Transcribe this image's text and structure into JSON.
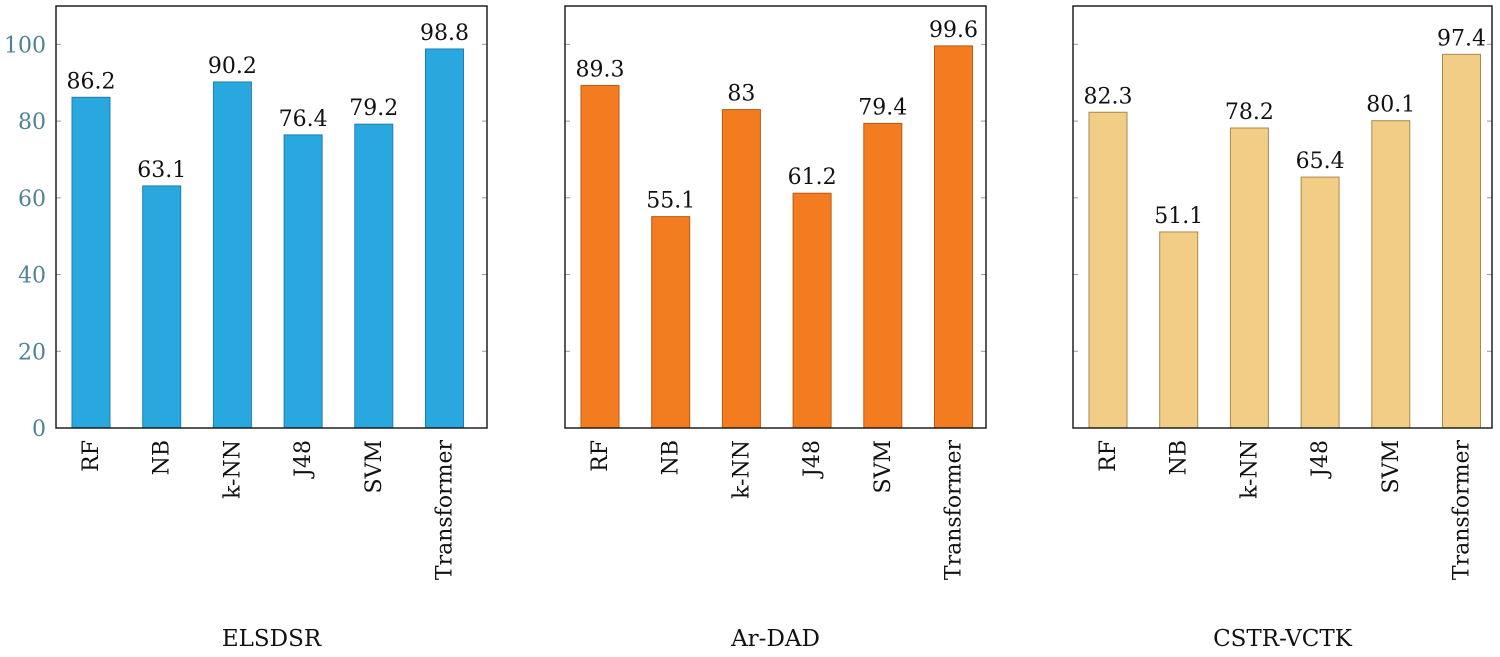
{
  "chart_data": [
    {
      "type": "bar",
      "title": "ELSDSR",
      "categories": [
        "RF",
        "NB",
        "k-NN",
        "J48",
        "SVM",
        "Transformer"
      ],
      "values": [
        86.2,
        63.1,
        90.2,
        76.4,
        79.2,
        98.8
      ],
      "data_labels": [
        "86.2",
        "63.1",
        "90.2",
        "76.4",
        "79.2",
        "98.8"
      ],
      "yticks": [
        "0",
        "20",
        "40",
        "60",
        "80",
        "100"
      ],
      "ylim": [
        0,
        110
      ],
      "color": "#29A8E0",
      "edge_color": "#1E7FAE",
      "xlabel": "",
      "ylabel": ""
    },
    {
      "type": "bar",
      "title": "Ar-DAD",
      "categories": [
        "RF",
        "NB",
        "k-NN",
        "J48",
        "SVM",
        "Transformer"
      ],
      "values": [
        89.3,
        55.1,
        83,
        61.2,
        79.4,
        99.6
      ],
      "data_labels": [
        "89.3",
        "55.1",
        "83",
        "61.2",
        "79.4",
        "99.6"
      ],
      "yticks": [],
      "ylim": [
        0,
        110
      ],
      "color": "#F47C20",
      "edge_color": "#B85A12",
      "xlabel": "",
      "ylabel": ""
    },
    {
      "type": "bar",
      "title": "CSTR-VCTK",
      "categories": [
        "RF",
        "NB",
        "k-NN",
        "J48",
        "SVM",
        "Transformer"
      ],
      "values": [
        82.3,
        51.1,
        78.2,
        65.4,
        80.1,
        97.4
      ],
      "data_labels": [
        "82.3",
        "51.1",
        "78.2",
        "65.4",
        "80.1",
        "97.4"
      ],
      "yticks": [],
      "ylim": [
        0,
        110
      ],
      "color": "#F2CD86",
      "edge_color": "#A8894E",
      "xlabel": "",
      "ylabel": ""
    }
  ],
  "colors": {
    "ytick_text": "#4F8296",
    "axis": "#111111",
    "grid_tick": "#999999"
  }
}
